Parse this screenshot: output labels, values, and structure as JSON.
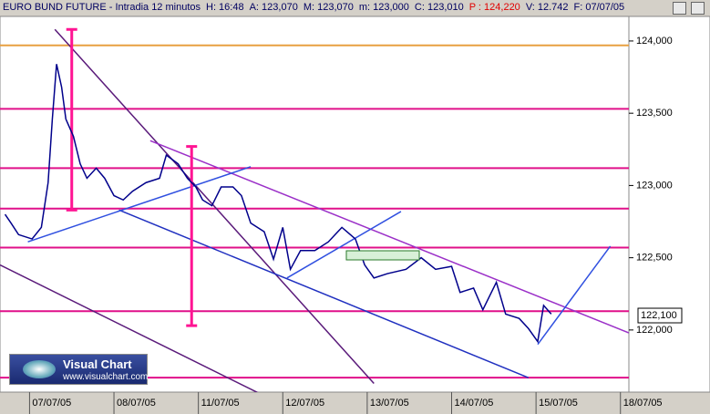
{
  "header": [
    "EURO BUND FUTURE - Intradia 12 minutos",
    "H: 16:48",
    "A: 123,070",
    "M: 123,070",
    "m: 123,000",
    "C: 123,010",
    "P : 124,220",
    "V: 12.742",
    "F: 07/07/05"
  ],
  "logo": {
    "title": "Visual Chart",
    "url": "www.visualchart.com"
  },
  "chart_data": {
    "type": "line",
    "series": [
      {
        "color": "#00008b",
        "x": [
          -0.29,
          -0.22,
          -0.13,
          0.03,
          0.14,
          0.22,
          0.27,
          0.32,
          0.38,
          0.43,
          0.52,
          0.6,
          0.68,
          0.79,
          0.89,
          1.0,
          1.11,
          1.22,
          1.38,
          1.54,
          1.62,
          1.76,
          1.87,
          1.97,
          2.05,
          2.16,
          2.27,
          2.41,
          2.51,
          2.62,
          2.78,
          2.89,
          3.0,
          3.09,
          3.21,
          3.38,
          3.54,
          3.7,
          3.86,
          3.97,
          4.08,
          4.24,
          4.46,
          4.64,
          4.81,
          5.0,
          5.1,
          5.26,
          5.37,
          5.53,
          5.64,
          5.8,
          5.91,
          6.02,
          6.09,
          6.18
        ],
        "values": [
          122.8,
          122.74,
          122.66,
          122.63,
          122.71,
          123.02,
          123.46,
          123.84,
          123.68,
          123.46,
          123.34,
          123.15,
          123.05,
          123.12,
          123.05,
          122.93,
          122.9,
          122.96,
          123.02,
          123.05,
          123.21,
          123.15,
          123.05,
          122.99,
          122.9,
          122.86,
          122.99,
          122.99,
          122.93,
          122.74,
          122.68,
          122.49,
          122.71,
          122.42,
          122.55,
          122.55,
          122.61,
          122.71,
          122.63,
          122.45,
          122.36,
          122.39,
          122.42,
          122.5,
          122.42,
          122.44,
          122.26,
          122.29,
          122.14,
          122.33,
          122.11,
          122.08,
          122.01,
          121.92,
          122.17,
          122.11
        ]
      }
    ],
    "xlim": [
      -0.35,
      7.1
    ],
    "ylim": [
      121.57,
      124.17
    ],
    "xticks": [
      {
        "value": 0,
        "label": "07/07/05"
      },
      {
        "value": 1,
        "label": "08/07/05"
      },
      {
        "value": 2,
        "label": "11/07/05"
      },
      {
        "value": 3,
        "label": "12/07/05"
      },
      {
        "value": 4,
        "label": "13/07/05"
      },
      {
        "value": 5,
        "label": "14/07/05"
      },
      {
        "value": 6,
        "label": "15/07/05"
      },
      {
        "value": 7,
        "label": "18/07/05"
      }
    ],
    "yticks": [
      {
        "value": 124,
        "label": "124,000"
      },
      {
        "value": 123.5,
        "label": "123,500"
      },
      {
        "value": 123,
        "label": "123,000"
      },
      {
        "value": 122.5,
        "label": "122,500"
      },
      {
        "value": 122,
        "label": "122,000"
      }
    ],
    "last_price": {
      "value": 122.1,
      "label": "122,100"
    },
    "levels": [
      {
        "value": 123.97,
        "color": "#e8a040"
      },
      {
        "value": 123.53,
        "color": "#e0108a"
      },
      {
        "value": 123.12,
        "color": "#e0108a"
      },
      {
        "value": 122.84,
        "color": "#e0108a"
      },
      {
        "value": 122.57,
        "color": "#e0108a"
      },
      {
        "value": 122.13,
        "color": "#e0108a"
      },
      {
        "value": 121.67,
        "color": "#e0108a"
      }
    ],
    "trendlines": [
      {
        "x": [
          0.3,
          4.08
        ],
        "y": [
          124.08,
          121.63
        ],
        "color": "#5a1a7a"
      },
      {
        "x": [
          1.43,
          7.1
        ],
        "y": [
          123.31,
          121.98
        ],
        "color": "#9b30c8"
      },
      {
        "x": [
          1.06,
          5.91
        ],
        "y": [
          122.83,
          121.67
        ],
        "color": "#2030c0"
      },
      {
        "x": [
          -0.35,
          3.21
        ],
        "y": [
          122.45,
          121.42
        ],
        "color": "#5a1a7a"
      },
      {
        "x": [
          -0.02,
          2.62
        ],
        "y": [
          122.61,
          123.13
        ],
        "color": "#3050e0"
      },
      {
        "x": [
          3.05,
          4.4
        ],
        "y": [
          122.36,
          122.82
        ],
        "color": "#3050e0"
      },
      {
        "x": [
          6.02,
          6.88
        ],
        "y": [
          121.9,
          122.58
        ],
        "color": "#3050e0"
      }
    ],
    "measures": [
      {
        "x": 0.5,
        "y": [
          124.08,
          122.83
        ],
        "color": "#ff1493"
      },
      {
        "x": 1.92,
        "y": [
          123.27,
          122.03
        ],
        "color": "#ff1493"
      }
    ]
  }
}
